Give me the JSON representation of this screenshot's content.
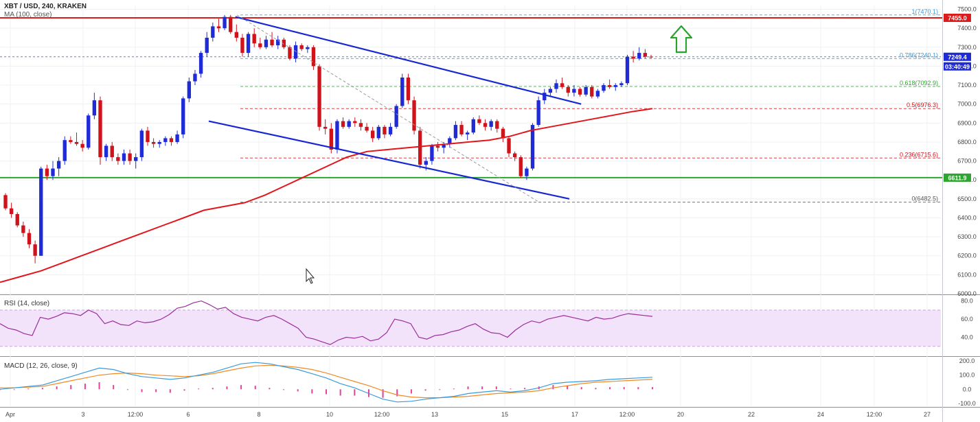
{
  "header": {
    "title": "XBT / USD, 240, KRAKEN",
    "ma_label": "MA (100, close)",
    "rsi_label": "RSI (14, close)",
    "macd_label": "MACD (12, 26, close, 9)"
  },
  "colors": {
    "up": "#1e2bd6",
    "down": "#d0121a",
    "ma": "#e3151b",
    "channel": "#1727d3",
    "resistance": "#d91c1c",
    "support": "#2ea52e",
    "arrow": "#2ca02c",
    "rsi": "#9b2c9b",
    "rsi_band": "#f2e3fb",
    "macd_line": "#3a9ad9",
    "signal_line": "#f08a24",
    "hist": "#e0208a",
    "grid": "#eef0f3"
  },
  "chart_data": {
    "type": "line",
    "title": "XBT / USD, 240, KRAKEN",
    "xlabel": "",
    "ylabel": "",
    "x_tick_labels": [
      "Apr",
      "3",
      "12:00",
      "6",
      "8",
      "10",
      "12:00",
      "13",
      "15",
      "17",
      "12:00",
      "20",
      "22",
      "24",
      "12:00",
      "27"
    ],
    "y_tick_labels": [
      "7500.0",
      "7400.0",
      "7300.0",
      "7200.0",
      "7100.0",
      "7000.0",
      "6900.0",
      "6800.0",
      "6700.0",
      "6600.0",
      "6500.0",
      "6400.0",
      "6300.0",
      "6200.0",
      "6100.0",
      "6000.0"
    ],
    "ylim": [
      6000,
      7520
    ],
    "grid": true,
    "price_labels": [
      {
        "text": "7455.0",
        "value": 7455.0,
        "color": "#d91c1c"
      },
      {
        "text": "7249.4",
        "value": 7249.4,
        "color": "#1e2bd6"
      },
      {
        "text": "03:40:49",
        "value": 7200,
        "color": "#1e2bd6"
      },
      {
        "text": "6611.9",
        "value": 6611.9,
        "color": "#2ea52e"
      }
    ],
    "fib_levels": [
      {
        "label": "1(7470.1)",
        "value": 7470.1,
        "color": "#3a9ad9"
      },
      {
        "label": "0.786(7240.1)",
        "value": 7240.1,
        "color": "#3a9ad9"
      },
      {
        "label": "0.618(7092.9)",
        "value": 7092.9,
        "color": "#2ea52e"
      },
      {
        "label": "0.5(6976.3)",
        "value": 6976.3,
        "color": "#d0121a"
      },
      {
        "label": "0.236(6715.6)",
        "value": 6715.6,
        "color": "#d0121a"
      },
      {
        "label": "0(6482.5)",
        "value": 6482.5,
        "color": "#555555"
      }
    ],
    "horizontal_lines": [
      {
        "name": "resistance",
        "value": 7455.0
      },
      {
        "name": "support",
        "value": 6611.9
      }
    ],
    "candles_ohlc": [
      [
        6520,
        6530,
        6440,
        6450
      ],
      [
        6450,
        6480,
        6400,
        6420
      ],
      [
        6420,
        6430,
        6350,
        6360
      ],
      [
        6360,
        6380,
        6300,
        6320
      ],
      [
        6320,
        6340,
        6240,
        6260
      ],
      [
        6260,
        6280,
        6160,
        6200
      ],
      [
        6200,
        6670,
        6200,
        6660
      ],
      [
        6660,
        6680,
        6600,
        6620
      ],
      [
        6620,
        6700,
        6600,
        6660
      ],
      [
        6660,
        6720,
        6620,
        6700
      ],
      [
        6700,
        6830,
        6680,
        6810
      ],
      [
        6810,
        6830,
        6790,
        6800
      ],
      [
        6800,
        6850,
        6780,
        6790
      ],
      [
        6790,
        6810,
        6750,
        6770
      ],
      [
        6770,
        6950,
        6760,
        6940
      ],
      [
        6940,
        7060,
        6920,
        7020
      ],
      [
        7020,
        7040,
        6680,
        6720
      ],
      [
        6720,
        6790,
        6700,
        6780
      ],
      [
        6780,
        6800,
        6700,
        6720
      ],
      [
        6720,
        6740,
        6680,
        6700
      ],
      [
        6700,
        6760,
        6680,
        6740
      ],
      [
        6740,
        6760,
        6680,
        6700
      ],
      [
        6700,
        6740,
        6660,
        6720
      ],
      [
        6720,
        6870,
        6700,
        6860
      ],
      [
        6860,
        6880,
        6780,
        6800
      ],
      [
        6800,
        6820,
        6770,
        6790
      ],
      [
        6790,
        6810,
        6770,
        6800
      ],
      [
        6800,
        6830,
        6780,
        6820
      ],
      [
        6820,
        6830,
        6780,
        6800
      ],
      [
        6800,
        6860,
        6790,
        6840
      ],
      [
        6840,
        7040,
        6820,
        7030
      ],
      [
        7030,
        7140,
        7010,
        7120
      ],
      [
        7120,
        7180,
        7100,
        7160
      ],
      [
        7160,
        7280,
        7140,
        7270
      ],
      [
        7270,
        7380,
        7250,
        7350
      ],
      [
        7350,
        7430,
        7330,
        7410
      ],
      [
        7410,
        7450,
        7380,
        7400
      ],
      [
        7400,
        7470,
        7390,
        7460
      ],
      [
        7460,
        7470,
        7370,
        7380
      ],
      [
        7380,
        7420,
        7330,
        7350
      ],
      [
        7350,
        7370,
        7250,
        7270
      ],
      [
        7270,
        7380,
        7250,
        7370
      ],
      [
        7370,
        7400,
        7300,
        7320
      ],
      [
        7320,
        7350,
        7290,
        7300
      ],
      [
        7300,
        7360,
        7290,
        7340
      ],
      [
        7340,
        7380,
        7300,
        7310
      ],
      [
        7310,
        7360,
        7290,
        7340
      ],
      [
        7340,
        7350,
        7290,
        7300
      ],
      [
        7300,
        7310,
        7230,
        7240
      ],
      [
        7240,
        7330,
        7220,
        7310
      ],
      [
        7310,
        7320,
        7280,
        7290
      ],
      [
        7290,
        7310,
        7270,
        7300
      ],
      [
        7300,
        7310,
        7180,
        7200
      ],
      [
        7200,
        7210,
        6860,
        6880
      ],
      [
        6880,
        6920,
        6840,
        6870
      ],
      [
        6870,
        6900,
        6740,
        6760
      ],
      [
        6760,
        6920,
        6740,
        6910
      ],
      [
        6910,
        6930,
        6870,
        6880
      ],
      [
        6880,
        6920,
        6870,
        6910
      ],
      [
        6910,
        6930,
        6880,
        6900
      ],
      [
        6900,
        6920,
        6860,
        6880
      ],
      [
        6880,
        6900,
        6850,
        6860
      ],
      [
        6860,
        6880,
        6800,
        6820
      ],
      [
        6820,
        6890,
        6810,
        6880
      ],
      [
        6880,
        6890,
        6820,
        6840
      ],
      [
        6840,
        6900,
        6830,
        6880
      ],
      [
        6880,
        7000,
        6870,
        6990
      ],
      [
        6990,
        7160,
        6980,
        7140
      ],
      [
        7140,
        7160,
        7000,
        7020
      ],
      [
        7020,
        7040,
        6840,
        6860
      ],
      [
        6860,
        6880,
        6660,
        6680
      ],
      [
        6680,
        6720,
        6650,
        6700
      ],
      [
        6700,
        6790,
        6680,
        6780
      ],
      [
        6780,
        6800,
        6750,
        6770
      ],
      [
        6770,
        6800,
        6740,
        6790
      ],
      [
        6790,
        6830,
        6770,
        6820
      ],
      [
        6820,
        6910,
        6810,
        6890
      ],
      [
        6890,
        6910,
        6830,
        6840
      ],
      [
        6840,
        6860,
        6810,
        6850
      ],
      [
        6850,
        6930,
        6840,
        6920
      ],
      [
        6920,
        6940,
        6890,
        6900
      ],
      [
        6900,
        6920,
        6860,
        6880
      ],
      [
        6880,
        6920,
        6860,
        6910
      ],
      [
        6910,
        6920,
        6850,
        6870
      ],
      [
        6870,
        6880,
        6800,
        6820
      ],
      [
        6820,
        6830,
        6720,
        6740
      ],
      [
        6740,
        6750,
        6700,
        6720
      ],
      [
        6720,
        6730,
        6610,
        6620
      ],
      [
        6620,
        6670,
        6600,
        6660
      ],
      [
        6660,
        6900,
        6650,
        6890
      ],
      [
        6890,
        7040,
        6880,
        7020
      ],
      [
        7020,
        7080,
        7000,
        7060
      ],
      [
        7060,
        7090,
        7040,
        7080
      ],
      [
        7080,
        7130,
        7060,
        7110
      ],
      [
        7110,
        7140,
        7080,
        7090
      ],
      [
        7090,
        7100,
        7040,
        7060
      ],
      [
        7060,
        7100,
        7040,
        7080
      ],
      [
        7080,
        7090,
        7040,
        7050
      ],
      [
        7050,
        7100,
        7040,
        7090
      ],
      [
        7090,
        7100,
        7030,
        7040
      ],
      [
        7040,
        7080,
        7030,
        7070
      ],
      [
        7070,
        7110,
        7060,
        7100
      ],
      [
        7100,
        7130,
        7080,
        7090
      ],
      [
        7090,
        7110,
        7070,
        7100
      ],
      [
        7100,
        7120,
        7090,
        7110
      ],
      [
        7110,
        7260,
        7100,
        7250
      ],
      [
        7250,
        7280,
        7220,
        7240
      ],
      [
        7240,
        7300,
        7230,
        7270
      ],
      [
        7270,
        7290,
        7240,
        7250
      ],
      [
        7250,
        7260,
        7240,
        7249.4
      ]
    ],
    "ma100": [
      6060,
      6090,
      6120,
      6160,
      6200,
      6240,
      6280,
      6320,
      6360,
      6400,
      6440,
      6460,
      6480,
      6520,
      6570,
      6620,
      6670,
      6720,
      6750,
      6760,
      6770,
      6780,
      6790,
      6800,
      6810,
      6830,
      6860,
      6880,
      6900,
      6920,
      6940,
      6960,
      6976
    ],
    "channel_upper": {
      "start": [
        7460,
        0.236
      ],
      "end": [
        7000,
        0.593
      ]
    },
    "channel_lower": {
      "start": [
        6910,
        0.213
      ],
      "end": [
        6500,
        0.581
      ]
    },
    "rsi": {
      "ylim": [
        20,
        85
      ],
      "tick_labels": [
        "80.0",
        "60.0",
        "40.0"
      ],
      "band": [
        30,
        70
      ],
      "values": [
        55,
        50,
        48,
        44,
        42,
        62,
        60,
        63,
        67,
        66,
        64,
        70,
        66,
        55,
        58,
        54,
        53,
        58,
        56,
        57,
        60,
        65,
        72,
        74,
        78,
        80,
        76,
        71,
        73,
        66,
        62,
        60,
        58,
        62,
        64,
        60,
        55,
        50,
        40,
        38,
        35,
        32,
        37,
        40,
        39,
        41,
        36,
        38,
        45,
        60,
        58,
        55,
        40,
        38,
        42,
        43,
        46,
        48,
        52,
        55,
        49,
        45,
        44,
        40,
        48,
        54,
        58,
        56,
        60,
        62,
        64,
        62,
        60,
        58,
        62,
        60,
        61,
        64,
        66,
        65,
        64,
        63
      ]
    },
    "macd": {
      "ylim": [
        -120,
        220
      ],
      "tick_labels": [
        "200.0",
        "100.0",
        "0.0",
        "-100.0"
      ],
      "macd_line": [
        0,
        10,
        20,
        30,
        60,
        90,
        120,
        150,
        140,
        110,
        90,
        80,
        70,
        80,
        100,
        120,
        150,
        180,
        190,
        180,
        160,
        140,
        110,
        80,
        40,
        10,
        -30,
        -70,
        -90,
        -85,
        -70,
        -60,
        -50,
        -30,
        -20,
        -10,
        -20,
        -10,
        10,
        40,
        50,
        55,
        60,
        70,
        75,
        80,
        85
      ],
      "signal_line": [
        10,
        10,
        15,
        20,
        40,
        60,
        80,
        100,
        110,
        115,
        110,
        100,
        95,
        90,
        95,
        110,
        130,
        150,
        165,
        170,
        165,
        155,
        140,
        115,
        85,
        55,
        25,
        -10,
        -40,
        -55,
        -60,
        -60,
        -55,
        -50,
        -40,
        -30,
        -25,
        -20,
        -10,
        10,
        25,
        40,
        50,
        55,
        60,
        65,
        70
      ],
      "histogram": [
        -5,
        0,
        5,
        10,
        20,
        30,
        40,
        50,
        30,
        -5,
        -20,
        -20,
        -25,
        -10,
        5,
        10,
        20,
        30,
        25,
        10,
        -5,
        -15,
        -30,
        -35,
        -45,
        -45,
        -55,
        -60,
        -50,
        -30,
        -10,
        0,
        5,
        20,
        20,
        20,
        5,
        10,
        20,
        30,
        25,
        15,
        10,
        15,
        15,
        15,
        15
      ]
    }
  }
}
